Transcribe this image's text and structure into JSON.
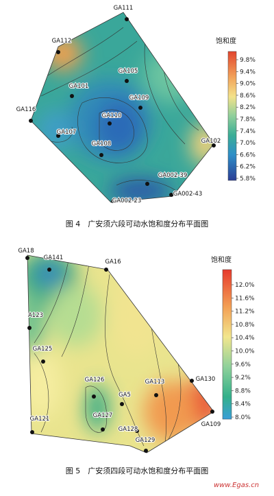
{
  "figures": [
    {
      "colorbar": {
        "title": "饱和度",
        "ticks": [
          "9.8%",
          "9.4%",
          "9.0%",
          "8.6%",
          "8.2%",
          "7.8%",
          "7.4%",
          "7.0%",
          "6.6%",
          "6.2%",
          "5.8%"
        ]
      },
      "wells": [
        "GA111",
        "GA112",
        "GA105",
        "GA101",
        "GA109",
        "GA116",
        "GA110",
        "GA107",
        "GA108",
        "GA102",
        "GA002-39",
        "GA002-43",
        "GA002-23"
      ],
      "caption": "图 4　广安须六段可动水饱和度分布平面图"
    },
    {
      "colorbar": {
        "title": "饱和度",
        "ticks": [
          "12.0%",
          "11.6%",
          "11.2%",
          "10.8%",
          "10.4%",
          "10.0%",
          "9.6%",
          "9.2%",
          "8.8%",
          "8.4%",
          "8.0%"
        ]
      },
      "wells": [
        "GA18",
        "GA141",
        "GA16",
        "A123",
        "GA125",
        "GA126",
        "GA113",
        "GA130",
        "GA5",
        "GA127",
        "GA128",
        "GA129",
        "GA121",
        "GA109"
      ],
      "caption": "图 5　广安须四段可动水饱和度分布平面图"
    }
  ],
  "watermark": "www.Egas.cn"
}
